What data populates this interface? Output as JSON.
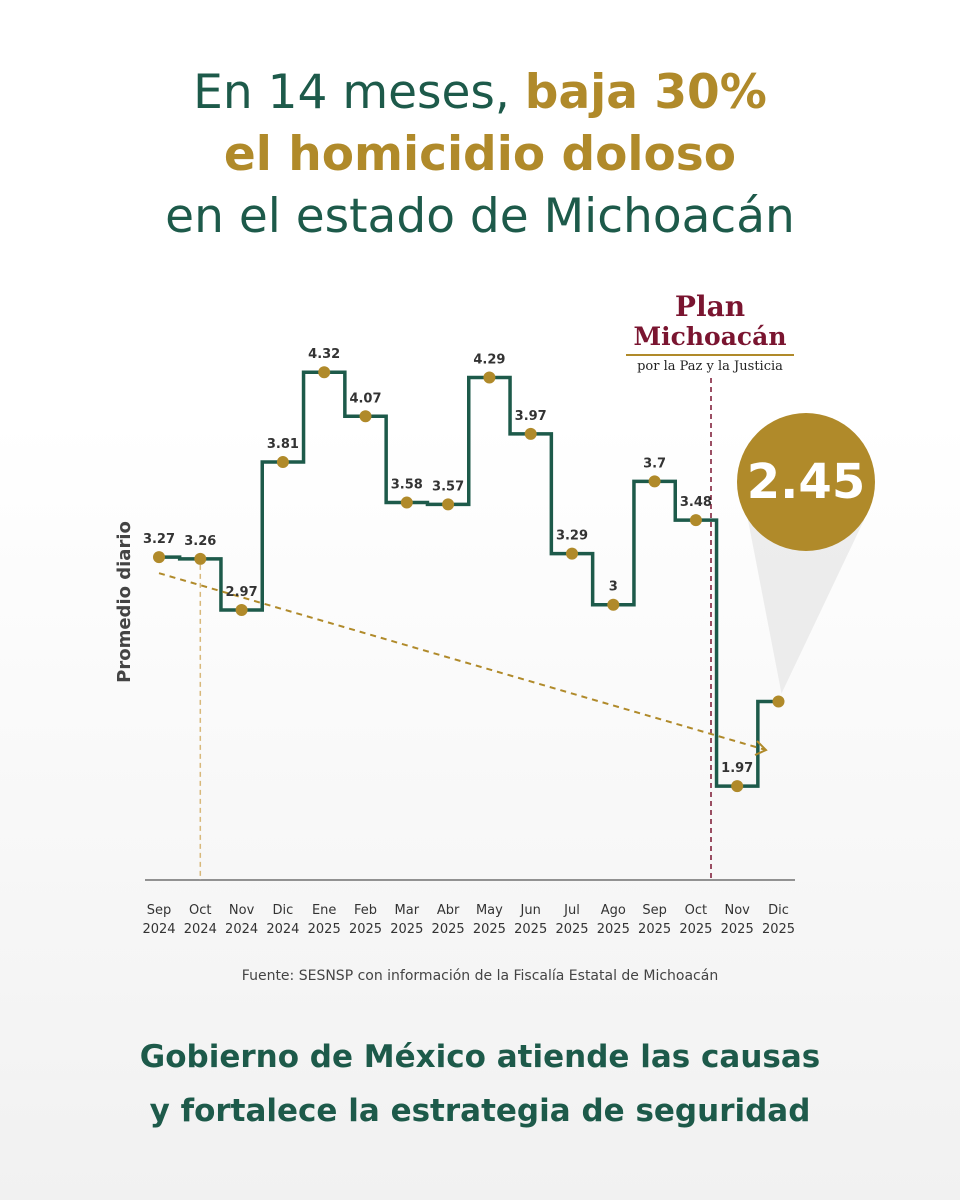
{
  "headline": {
    "part1": "En 14 meses, ",
    "part2": "baja 30%",
    "line2": "el homicidio doloso",
    "line3": "en el estado de Michoacán"
  },
  "logo": {
    "line1": "Plan",
    "line2": "Michoacán",
    "line3": "por la Paz y la Justicia"
  },
  "badge": {
    "value": "2.45"
  },
  "source": "Fuente: SESNSP con información de la Fiscalía Estatal de Michoacán",
  "footer": {
    "line1": "Gobierno de México atiende las causas",
    "line2": "y fortalece la estrategia de seguridad"
  },
  "colors": {
    "green": "#1d5a4a",
    "gold": "#b08a2a",
    "maroon": "#7a1530"
  },
  "chart_data": {
    "type": "line",
    "style": "step",
    "ylabel": "Promedio diario",
    "categories": [
      [
        "Sep",
        "2024"
      ],
      [
        "Oct",
        "2024"
      ],
      [
        "Nov",
        "2024"
      ],
      [
        "Dic",
        "2024"
      ],
      [
        "Ene",
        "2025"
      ],
      [
        "Feb",
        "2025"
      ],
      [
        "Mar",
        "2025"
      ],
      [
        "Abr",
        "2025"
      ],
      [
        "May",
        "2025"
      ],
      [
        "Jun",
        "2025"
      ],
      [
        "Jul",
        "2025"
      ],
      [
        "Ago",
        "2025"
      ],
      [
        "Sep",
        "2025"
      ],
      [
        "Oct",
        "2025"
      ],
      [
        "Nov",
        "2025"
      ],
      [
        "Dic",
        "2025"
      ]
    ],
    "values": [
      3.27,
      3.26,
      2.97,
      3.81,
      4.32,
      4.07,
      3.58,
      3.57,
      4.29,
      3.97,
      3.29,
      3.0,
      3.7,
      3.48,
      1.97,
      2.45
    ],
    "value_labels": [
      "3.27",
      "3.26",
      "2.97",
      "3.81",
      "4.32",
      "4.07",
      "3.58",
      "3.57",
      "4.29",
      "3.97",
      "3.29",
      "3",
      "3.7",
      "3.48",
      "1.97",
      ""
    ],
    "trend": {
      "from_index": 0,
      "to_index": 15,
      "style": "dashed-arrow"
    },
    "marker_line_after": "Oct 2025",
    "grid": false
  }
}
